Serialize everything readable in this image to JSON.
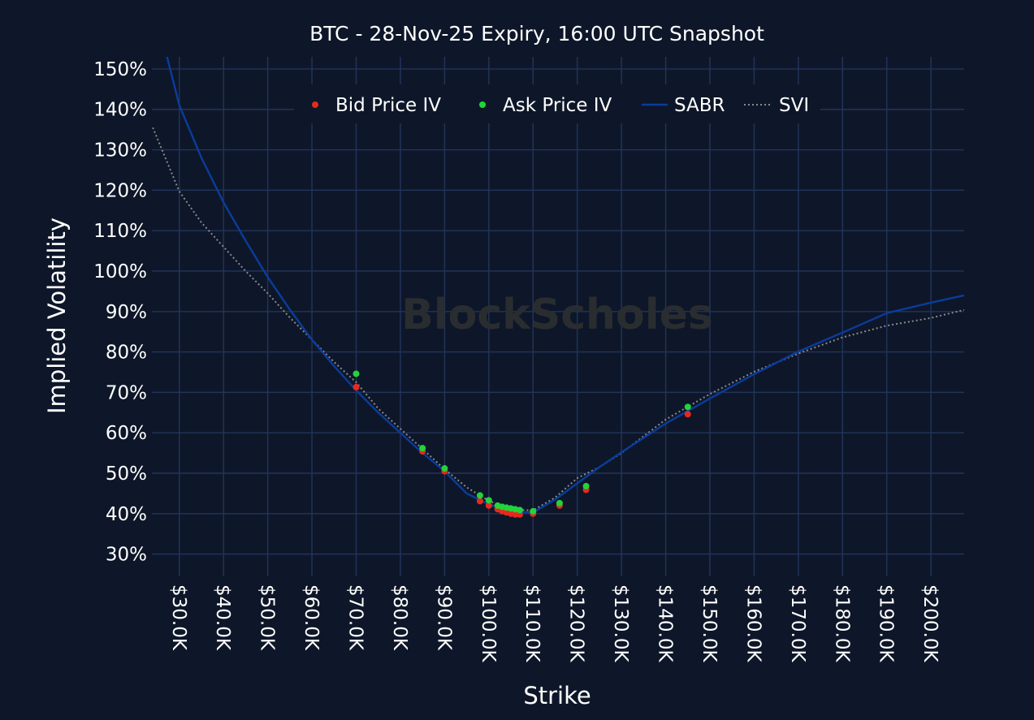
{
  "chart_data": {
    "type": "scatter",
    "title": "BTC - 28-Nov-25 Expiry, 16:00 UTC Snapshot",
    "xlabel": "Strike",
    "ylabel": "Implied Volatility",
    "watermark": "BlockScholes",
    "xlim": [
      23.8,
      207.5
    ],
    "ylim": [
      24.5,
      153
    ],
    "x_ticks": [
      30,
      40,
      50,
      60,
      70,
      80,
      90,
      100,
      110,
      120,
      130,
      140,
      150,
      160,
      170,
      180,
      190,
      200
    ],
    "x_tick_labels": [
      "$30.0K",
      "$40.0K",
      "$50.0K",
      "$60.0K",
      "$70.0K",
      "$80.0K",
      "$90.0K",
      "$100.0K",
      "$110.0K",
      "$120.0K",
      "$130.0K",
      "$140.0K",
      "$150.0K",
      "$160.0K",
      "$170.0K",
      "$180.0K",
      "$190.0K",
      "$200.0K"
    ],
    "y_ticks": [
      30,
      40,
      50,
      60,
      70,
      80,
      90,
      100,
      110,
      120,
      130,
      140,
      150
    ],
    "y_tick_labels": [
      "30%",
      "40%",
      "50%",
      "60%",
      "70%",
      "80%",
      "90%",
      "100%",
      "110%",
      "120%",
      "130%",
      "140%",
      "150%"
    ],
    "grid": true,
    "legend_position": "top-center",
    "series": [
      {
        "name": "Bid Price IV",
        "kind": "scatter",
        "color": "#e8281e",
        "x": [
          70,
          85,
          90,
          98,
          100,
          102,
          103,
          104,
          105,
          106,
          107,
          110,
          116,
          122,
          145
        ],
        "y": [
          71.3,
          55.4,
          50.5,
          43.1,
          42.0,
          41.1,
          40.6,
          40.3,
          40.0,
          39.8,
          39.8,
          40.0,
          42.0,
          45.9,
          64.6
        ]
      },
      {
        "name": "Ask Price IV",
        "kind": "scatter",
        "color": "#22d43a",
        "x": [
          70,
          85,
          90,
          98,
          100,
          102,
          103,
          104,
          105,
          106,
          107,
          110,
          116,
          122,
          145
        ],
        "y": [
          74.6,
          56.2,
          51.2,
          44.5,
          43.3,
          42.0,
          41.7,
          41.5,
          41.3,
          41.1,
          40.9,
          40.6,
          42.6,
          46.8,
          66.4
        ]
      },
      {
        "name": "SABR",
        "kind": "line",
        "color": "#0a3c9c",
        "dash": "solid",
        "x": [
          27,
          30,
          35,
          40,
          45,
          50,
          55,
          60,
          65,
          70,
          75,
          80,
          85,
          90,
          95,
          100,
          105,
          110,
          115,
          120,
          125,
          130,
          140,
          150,
          160,
          170,
          180,
          190,
          200,
          207.5
        ],
        "y": [
          154,
          141,
          128,
          117,
          107.5,
          98.5,
          90.5,
          83,
          76.5,
          70.5,
          65,
          60,
          55,
          50.5,
          45,
          42.3,
          40.5,
          40.3,
          43.5,
          47.5,
          51.5,
          55.2,
          62.3,
          68.5,
          74.5,
          80.1,
          84.8,
          89.6,
          92.2,
          94
        ]
      },
      {
        "name": "SVI",
        "kind": "line",
        "color": "#8a8a8a",
        "dash": "dotted",
        "x": [
          24,
          30,
          35,
          40,
          45,
          50,
          55,
          60,
          65,
          70,
          75,
          80,
          85,
          90,
          95,
          100,
          105,
          110,
          115,
          120,
          125,
          130,
          140,
          150,
          160,
          170,
          180,
          190,
          200,
          207.5
        ],
        "y": [
          135.5,
          119.7,
          112,
          106,
          100,
          94.5,
          88.5,
          83,
          77.5,
          72.5,
          66,
          61,
          56,
          51,
          46.5,
          43.2,
          41,
          40.8,
          44,
          48.8,
          51.5,
          55,
          63.3,
          69.6,
          75.1,
          79.6,
          83.6,
          86.5,
          88.4,
          90.4
        ]
      }
    ]
  }
}
